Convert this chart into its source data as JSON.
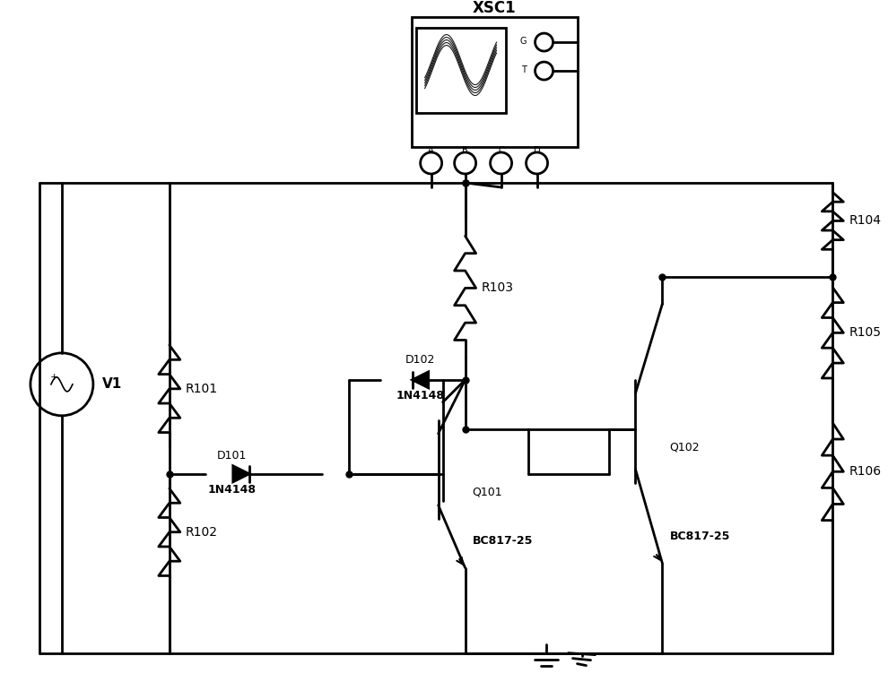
{
  "title": "XSC1",
  "bg_color": "#ffffff",
  "line_color": "#000000",
  "line_width": 2.0,
  "component_labels": {
    "V1": "V1",
    "R101": "R101",
    "R102": "R102",
    "R103": "R103",
    "R104": "R104",
    "R105": "R105",
    "R106": "R106",
    "D101": "D101",
    "D101_type": "1N4148",
    "D102": "D102",
    "D102_type": "1N4148",
    "Q101": "Q101",
    "Q101_type": "BC817-25",
    "Q102": "Q102",
    "Q102_type": "BC817-25"
  }
}
